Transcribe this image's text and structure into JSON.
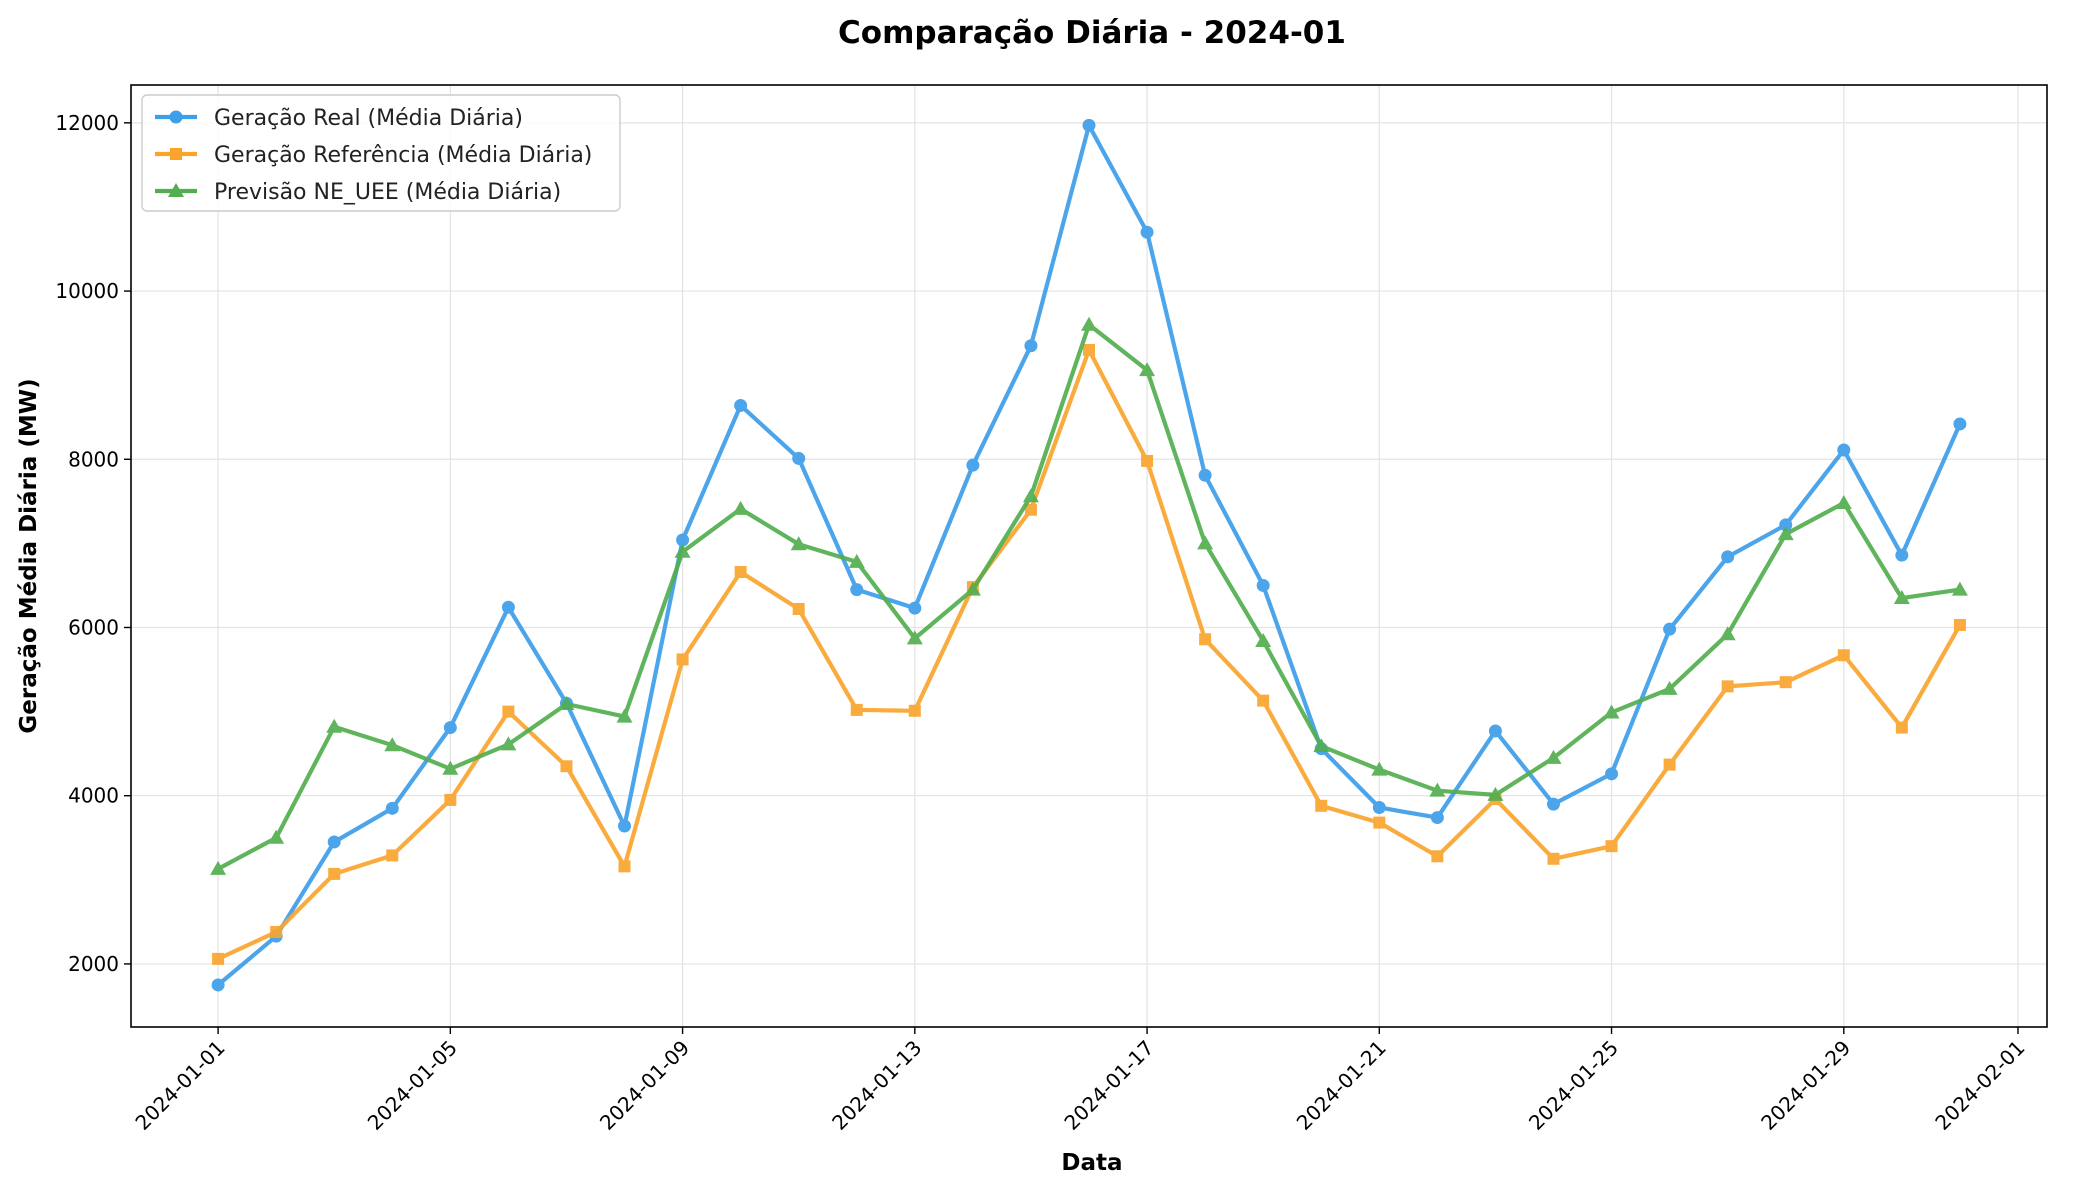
{
  "chart_data": {
    "type": "line",
    "title": "Comparação Diária - 2024-01",
    "xlabel": "Data",
    "ylabel": "Geração Média Diária (MW)",
    "x": [
      "2024-01-01",
      "2024-01-02",
      "2024-01-03",
      "2024-01-04",
      "2024-01-05",
      "2024-01-06",
      "2024-01-07",
      "2024-01-08",
      "2024-01-09",
      "2024-01-10",
      "2024-01-11",
      "2024-01-12",
      "2024-01-13",
      "2024-01-14",
      "2024-01-15",
      "2024-01-16",
      "2024-01-17",
      "2024-01-18",
      "2024-01-19",
      "2024-01-20",
      "2024-01-21",
      "2024-01-22",
      "2024-01-23",
      "2024-01-24",
      "2024-01-25",
      "2024-01-26",
      "2024-01-27",
      "2024-01-28",
      "2024-01-29",
      "2024-01-30",
      "2024-01-31"
    ],
    "xlim": [
      "2023-12-30",
      "2024-02-01"
    ],
    "x_ticks": [
      "2024-01-01",
      "2024-01-05",
      "2024-01-09",
      "2024-01-13",
      "2024-01-17",
      "2024-01-21",
      "2024-01-25",
      "2024-01-29",
      "2024-02-01"
    ],
    "ylim": [
      1250,
      12450
    ],
    "y_ticks": [
      2000,
      4000,
      6000,
      8000,
      10000,
      12000
    ],
    "grid": true,
    "legend_position": "top-left",
    "series": [
      {
        "name": "Geração Real (Média Diária)",
        "color": "#3d9ee9",
        "marker": "circle",
        "values": [
          1750,
          2330,
          3450,
          3850,
          4810,
          6240,
          5100,
          3640,
          7040,
          8640,
          8010,
          6450,
          6230,
          7930,
          9350,
          11970,
          10700,
          7810,
          6500,
          4560,
          3860,
          3740,
          4770,
          3900,
          4260,
          5980,
          6840,
          7220,
          8110,
          6860,
          8420
        ]
      },
      {
        "name": "Geração Referência (Média Diária)",
        "color": "#faa42e",
        "marker": "square",
        "values": [
          2060,
          2380,
          3070,
          3290,
          3950,
          5000,
          4350,
          3160,
          5620,
          6660,
          6220,
          5020,
          5010,
          6480,
          7400,
          9300,
          7980,
          5860,
          5130,
          3880,
          3680,
          3280,
          3960,
          3250,
          3400,
          4370,
          5300,
          5350,
          5670,
          4810,
          6030
        ]
      },
      {
        "name": "Previsão NE_UEE (Média Diária)",
        "color": "#52ae4f",
        "marker": "triangle",
        "values": [
          3130,
          3500,
          4820,
          4600,
          4320,
          4610,
          5090,
          4940,
          6900,
          7410,
          6990,
          6780,
          5870,
          6450,
          7560,
          9600,
          9060,
          7000,
          5840,
          4590,
          4310,
          4060,
          4010,
          4450,
          4990,
          5270,
          5920,
          7110,
          7480,
          6350,
          6450
        ]
      }
    ]
  }
}
